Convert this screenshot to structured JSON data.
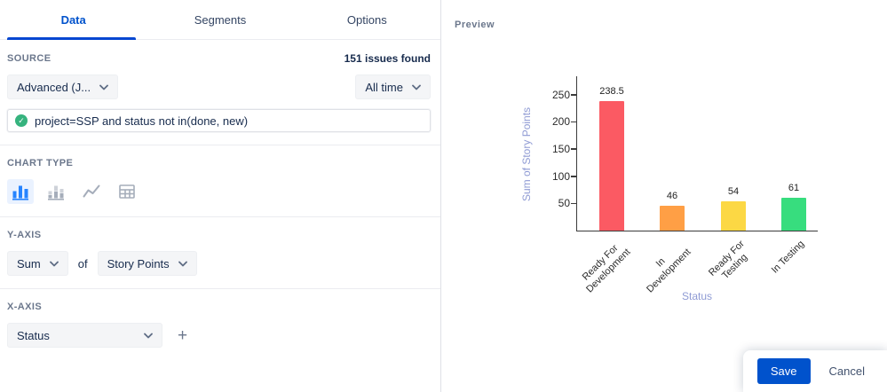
{
  "tabs": [
    {
      "label": "Data",
      "active": true
    },
    {
      "label": "Segments",
      "active": false
    },
    {
      "label": "Options",
      "active": false
    }
  ],
  "source": {
    "section_label": "Source",
    "issues_found": "151 issues found",
    "source_dropdown": "Advanced (J...",
    "time_dropdown": "All time",
    "query": "project=SSP and status not in(done, new)"
  },
  "chart_type": {
    "section_label": "Chart type",
    "options": [
      {
        "name": "bar-chart",
        "selected": true
      },
      {
        "name": "stacked-bar-chart",
        "selected": false
      },
      {
        "name": "line-chart",
        "selected": false
      },
      {
        "name": "table",
        "selected": false
      }
    ]
  },
  "y_axis": {
    "section_label": "Y-Axis",
    "aggregation": "Sum",
    "of_label": "of",
    "field": "Story Points"
  },
  "x_axis": {
    "section_label": "X-Axis",
    "field": "Status"
  },
  "preview": {
    "label": "Preview"
  },
  "footer": {
    "save_label": "Save",
    "cancel_label": "Cancel"
  },
  "icons": {
    "check_glyph": "✓",
    "plus_glyph": "+"
  },
  "colors": {
    "accent": "#0052CC",
    "valid_green": "#36B37E",
    "axis_title": "#8F9BD4",
    "bar_red": "#FB5A63",
    "bar_orange": "#FF9F45",
    "bar_yellow": "#FCD844",
    "bar_green": "#37DD7E"
  },
  "chart_data": {
    "type": "bar",
    "title": "",
    "categories": [
      "Ready For Development",
      "In Development",
      "Ready For Testing",
      "In Testing"
    ],
    "categories_display": [
      "Ready For\nDevelopment",
      "In\nDevelopment",
      "Ready For\nTesting",
      "In Testing"
    ],
    "values": [
      238.5,
      46,
      54,
      61
    ],
    "value_labels": [
      "238.5",
      "46",
      "54",
      "61"
    ],
    "bar_colors": [
      "#FB5A63",
      "#FF9F45",
      "#FCD844",
      "#37DD7E"
    ],
    "xlabel": "Status",
    "ylabel": "Sum of Story Points",
    "yticks": [
      50,
      100,
      150,
      200,
      250
    ],
    "ylim": [
      0,
      285
    ],
    "grid": false,
    "legend": false
  }
}
